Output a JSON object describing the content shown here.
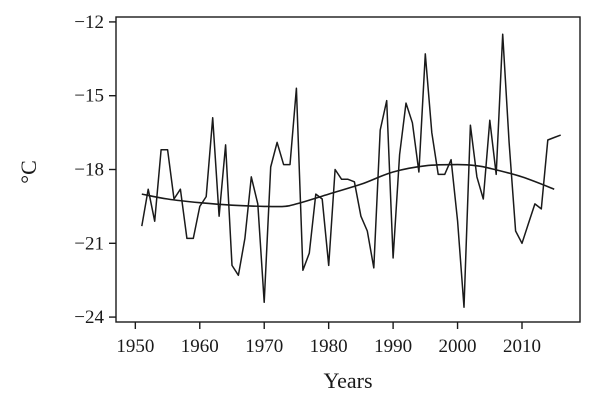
{
  "chart_data": {
    "type": "line",
    "title": "",
    "xlabel": "Years",
    "ylabel": "°C",
    "xlim": [
      1947,
      2019
    ],
    "ylim": [
      -24.2,
      -11.8
    ],
    "xticks": [
      1950,
      1960,
      1970,
      1980,
      1990,
      2000,
      2010
    ],
    "yticks": [
      -12,
      -15,
      -18,
      -21,
      -24
    ],
    "ytick_labels": [
      "−12",
      "−15",
      "−18",
      "−21",
      "−24"
    ],
    "grid": false,
    "legend": "none",
    "series": [
      {
        "x": [
          1951,
          1952,
          1953,
          1954,
          1955,
          1956,
          1957,
          1958,
          1959,
          1960,
          1961,
          1962,
          1963,
          1964,
          1965,
          1966,
          1967,
          1968,
          1969,
          1970,
          1971,
          1972,
          1973,
          1974,
          1975,
          1976,
          1977,
          1978,
          1979,
          1980,
          1981,
          1982,
          1983,
          1984,
          1985,
          1986,
          1987,
          1988,
          1989,
          1990,
          1991,
          1992,
          1993,
          1994,
          1995,
          1996,
          1997,
          1998,
          1999,
          2000,
          2001,
          2002,
          2003,
          2004,
          2005,
          2006,
          2007,
          2008,
          2009,
          2010,
          2011,
          2012,
          2013,
          2014,
          2015,
          2016
        ],
        "values": [
          -20.3,
          -18.8,
          -20.1,
          -17.2,
          -17.2,
          -19.2,
          -18.8,
          -20.8,
          -20.8,
          -19.5,
          -19.1,
          -15.9,
          -19.9,
          -17.0,
          -21.9,
          -22.3,
          -20.8,
          -18.3,
          -19.4,
          -23.4,
          -17.9,
          -16.9,
          -17.8,
          -17.8,
          -14.7,
          -22.1,
          -21.4,
          -19.0,
          -19.2,
          -21.9,
          -18.0,
          -18.4,
          -18.4,
          -18.5,
          -19.9,
          -20.5,
          -22.0,
          -16.4,
          -15.2,
          -21.6,
          -17.4,
          -15.3,
          -16.1,
          -18.1,
          -13.3,
          -16.5,
          -18.2,
          -18.2,
          -17.6,
          -20.1,
          -23.6,
          -16.2,
          -18.3,
          -19.2,
          -16.0,
          -18.2,
          -12.5,
          -16.9,
          -20.5,
          -21.0,
          -20.2,
          -19.4,
          -19.6,
          -16.8,
          -16.7,
          -16.6
        ]
      },
      {
        "x": [
          1951,
          1955,
          1960,
          1965,
          1970,
          1973,
          1975,
          1980,
          1985,
          1990,
          1995,
          2000,
          2003,
          2005,
          2010,
          2015
        ],
        "values": [
          -19.0,
          -19.2,
          -19.35,
          -19.45,
          -19.5,
          -19.5,
          -19.4,
          -19.0,
          -18.6,
          -18.1,
          -17.85,
          -17.8,
          -17.85,
          -17.95,
          -18.3,
          -18.8
        ]
      }
    ]
  }
}
